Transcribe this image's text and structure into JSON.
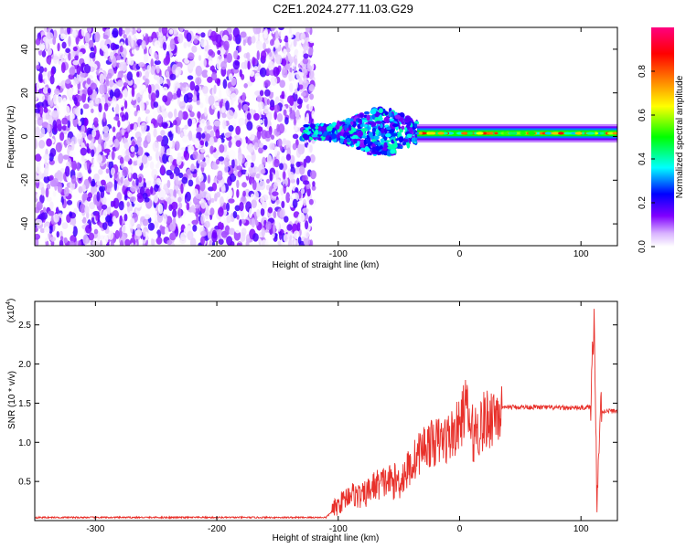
{
  "title": "C2E1.2024.277.11.03.G29",
  "chart_data": [
    {
      "type": "heatmap",
      "xlabel": "Height of straight line (km)",
      "ylabel": "Frequency (Hz)",
      "xlim": [
        -350,
        130
      ],
      "ylim": [
        -50,
        50
      ],
      "xticks": [
        -300,
        -200,
        -100,
        0,
        100
      ],
      "yticks": [
        -40,
        -20,
        0,
        20,
        40
      ],
      "colorbar": {
        "label": "Normalized spectral amplitude",
        "range": [
          0,
          1
        ],
        "ticks": [
          0.0,
          0.2,
          0.4,
          0.6,
          0.8
        ],
        "tick_labels": [
          "0.0",
          "0.2",
          "0.4",
          "0.6",
          "0.8"
        ],
        "colors": [
          "#ffffff",
          "#d9b3ff",
          "#8000ff",
          "#0000ff",
          "#00ffff",
          "#00ff00",
          "#ffff00",
          "#ff8000",
          "#ff0000",
          "#ff0080"
        ]
      },
      "regions": [
        {
          "x_range": [
            -350,
            -120
          ],
          "y_range": [
            -50,
            50
          ],
          "amplitude_range": [
            0.0,
            0.2
          ],
          "note_color": "#8000ff"
        },
        {
          "x_range": [
            -130,
            -35
          ],
          "y_range": [
            -10,
            12
          ],
          "amplitude_range": [
            0.2,
            0.45
          ],
          "note_color": "#00ffff"
        },
        {
          "x_range": [
            -35,
            130
          ],
          "y_center": 1.5,
          "y_halfwidth": 3,
          "amplitude_range": [
            0.3,
            0.9
          ],
          "note_color": "#00ff00"
        }
      ]
    },
    {
      "type": "line",
      "xlabel": "Height of straight line (km)",
      "ylabel": "SNR (10 * v/v)",
      "y_multiplier_label": "(x10",
      "y_multiplier_exp": "4",
      "xlim": [
        -350,
        130
      ],
      "ylim": [
        0,
        2.8
      ],
      "xticks": [
        -300,
        -200,
        -100,
        0,
        100
      ],
      "yticks": [
        0.5,
        1.0,
        1.5,
        2.0,
        2.5
      ],
      "ytick_labels": [
        "0.5",
        "1.0",
        "1.5",
        "2.0",
        "2.5"
      ],
      "series": [
        {
          "color": "#e8302a",
          "x": [
            -350,
            -300,
            -200,
            -110,
            -100,
            -90,
            -80,
            -70,
            -60,
            -50,
            -40,
            -30,
            -20,
            -10,
            0,
            5,
            10,
            20,
            30,
            40,
            60,
            80,
            100,
            108,
            111,
            113,
            116,
            120,
            130
          ],
          "y": [
            0.04,
            0.04,
            0.04,
            0.04,
            0.2,
            0.35,
            0.3,
            0.45,
            0.5,
            0.5,
            0.7,
            0.95,
            1.0,
            1.05,
            1.2,
            1.5,
            1.1,
            1.25,
            1.4,
            1.45,
            1.45,
            1.44,
            1.44,
            1.45,
            2.8,
            0.2,
            1.4,
            1.4,
            1.4
          ]
        }
      ]
    }
  ]
}
